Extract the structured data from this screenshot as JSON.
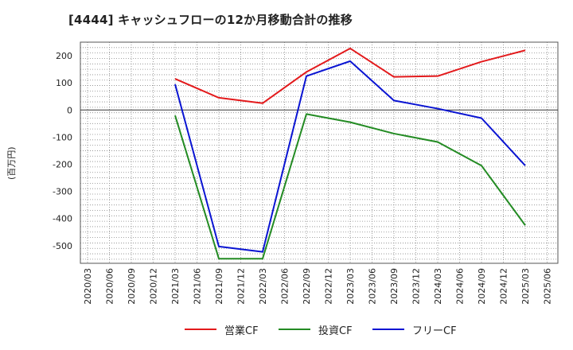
{
  "chart_data": {
    "type": "line",
    "title": "[4444]  キャッシュフローの12か月移動合計の推移",
    "ylabel": "(百万円)",
    "xlabel": "",
    "categories": [
      "2020/03",
      "2020/06",
      "2020/09",
      "2020/12",
      "2021/03",
      "2021/06",
      "2021/09",
      "2021/12",
      "2022/03",
      "2022/06",
      "2022/09",
      "2022/12",
      "2023/03",
      "2023/06",
      "2023/09",
      "2023/12",
      "2024/03",
      "2024/06",
      "2024/09",
      "2024/12",
      "2025/03",
      "2025/06"
    ],
    "y_ticks": [
      "200",
      "100",
      "0",
      "-100",
      "-200",
      "-300",
      "-400",
      "-500"
    ],
    "y_tick_values": [
      200,
      100,
      0,
      -100,
      -200,
      -300,
      -400,
      -500
    ],
    "ylim": [
      -565,
      250
    ],
    "grid": true,
    "legend_position": "bottom",
    "series": [
      {
        "name": "営業CF",
        "color": "#e31a1c",
        "values": [
          null,
          null,
          null,
          null,
          115,
          null,
          45,
          null,
          25,
          null,
          140,
          null,
          227,
          null,
          122,
          null,
          125,
          null,
          178,
          null,
          220,
          null
        ]
      },
      {
        "name": "投資CF",
        "color": "#238b23",
        "values": [
          null,
          null,
          null,
          null,
          -20,
          null,
          -548,
          null,
          -548,
          null,
          -15,
          null,
          -45,
          null,
          -87,
          null,
          -118,
          null,
          -205,
          null,
          -425,
          null
        ]
      },
      {
        "name": "フリーCF",
        "color": "#0a14d2",
        "values": [
          null,
          null,
          null,
          null,
          95,
          null,
          -503,
          null,
          -523,
          null,
          125,
          null,
          180,
          null,
          35,
          null,
          5,
          null,
          -30,
          null,
          -205,
          null
        ]
      }
    ]
  }
}
